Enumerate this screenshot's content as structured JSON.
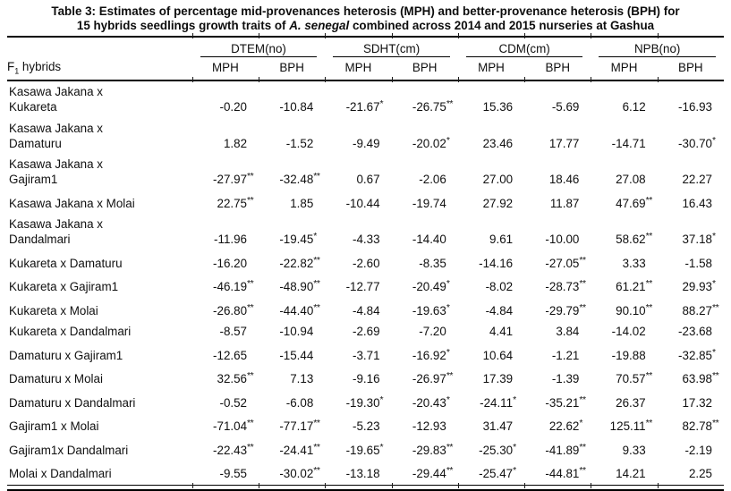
{
  "caption": {
    "line1": "Table 3: Estimates of percentage mid-provenances heterosis (MPH) and better-provenance heterosis (BPH) for",
    "line2_pre": "15 hybrids seedlings growth traits of ",
    "line2_italic": "A. senegal",
    "line2_post": " combined across 2014 and 2015 nurseries at Gashua"
  },
  "table": {
    "row_header": {
      "pre": "F",
      "sub": "1",
      "post": " hybrids"
    },
    "groups": [
      {
        "label": "DTEM(no)"
      },
      {
        "label": "SDHT(cm)"
      },
      {
        "label": "CDM(cm)"
      },
      {
        "label": "NPB(no)"
      }
    ],
    "subheaders": [
      "MPH",
      "BPH",
      "MPH",
      "BPH",
      "MPH",
      "BPH",
      "MPH",
      "BPH"
    ],
    "rows": [
      {
        "hybrid": "Kasawa Jakana x\nKukareta",
        "values": [
          "-0.20",
          "-10.84",
          "-21.67*",
          "-26.75**",
          "15.36",
          "-5.69",
          "6.12",
          "-16.93"
        ]
      },
      {
        "hybrid": "Kasawa Jakana x\nDamaturu",
        "values": [
          "1.82",
          "-1.52",
          "-9.49",
          "-20.02*",
          "23.46",
          "17.77",
          "-14.71",
          "-30.70*"
        ]
      },
      {
        "hybrid": "Kasawa Jakana x\nGajiram1",
        "values": [
          "-27.97**",
          "-32.48**",
          "0.67",
          "-2.06",
          "27.00",
          "18.46",
          "27.08",
          "22.27"
        ]
      },
      {
        "hybrid": "Kasawa Jakana x Molai",
        "values": [
          "22.75**",
          "1.85",
          "-10.44",
          "-19.74",
          "27.92",
          "11.87",
          "47.69**",
          "16.43"
        ]
      },
      {
        "hybrid": "Kasawa Jakana x\nDandalmari",
        "values": [
          "-11.96",
          "-19.45*",
          "-4.33",
          "-14.40",
          "9.61",
          "-10.00",
          "58.62**",
          "37.18*"
        ]
      },
      {
        "hybrid": "Kukareta x Damaturu",
        "values": [
          "-16.20",
          "-22.82**",
          "-2.60",
          "-8.35",
          "-14.16",
          "-27.05**",
          "3.33",
          "-1.58"
        ]
      },
      {
        "hybrid": "Kukareta x Gajiram1",
        "values": [
          "-46.19**",
          "-48.90**",
          "-12.77",
          "-20.49*",
          "-8.02",
          "-28.73**",
          "61.21**",
          "29.93*"
        ]
      },
      {
        "hybrid": "Kukareta x Molai",
        "values": [
          "-26.80**",
          "-44.40**",
          "-4.84",
          "-19.63*",
          "-4.84",
          "-29.79**",
          "90.10**",
          "88.27**"
        ]
      },
      {
        "hybrid": "Kukareta x Dandalmari",
        "values": [
          "-8.57",
          "-10.94",
          "-2.69",
          "-7.20",
          "4.41",
          "3.84",
          "-14.02",
          "-23.68"
        ]
      },
      {
        "hybrid": "Damaturu x Gajiram1",
        "values": [
          "-12.65",
          "-15.44",
          "-3.71",
          "-16.92*",
          "10.64",
          "-1.21",
          "-19.88",
          "-32.85*"
        ]
      },
      {
        "hybrid": "Damaturu x Molai",
        "values": [
          "32.56**",
          "7.13",
          "-9.16",
          "-26.97**",
          "17.39",
          "-1.39",
          "70.57**",
          "63.98**"
        ]
      },
      {
        "hybrid": "Damaturu x Dandalmari",
        "values": [
          "-0.52",
          "-6.08",
          "-19.30*",
          "-20.43*",
          "-24.11*",
          "-35.21**",
          "26.37",
          "17.32"
        ]
      },
      {
        "hybrid": "Gajiram1 x Molai",
        "values": [
          "-71.04**",
          "-77.17**",
          "-5.23",
          "-12.93",
          "31.47",
          "22.62*",
          "125.11**",
          "82.78**"
        ]
      },
      {
        "hybrid": "Gajiram1x Dandalmari",
        "values": [
          "-22.43**",
          "-24.41**",
          "-19.65*",
          "-29.83**",
          "-25.30*",
          "-41.89**",
          "9.33",
          "-2.19"
        ]
      },
      {
        "hybrid": "Molai x Dandalmari",
        "values": [
          "-9.55",
          "-30.02**",
          "-13.18",
          "-29.44**",
          "-25.47*",
          "-44.81**",
          "14.21",
          "2.25"
        ]
      }
    ]
  }
}
